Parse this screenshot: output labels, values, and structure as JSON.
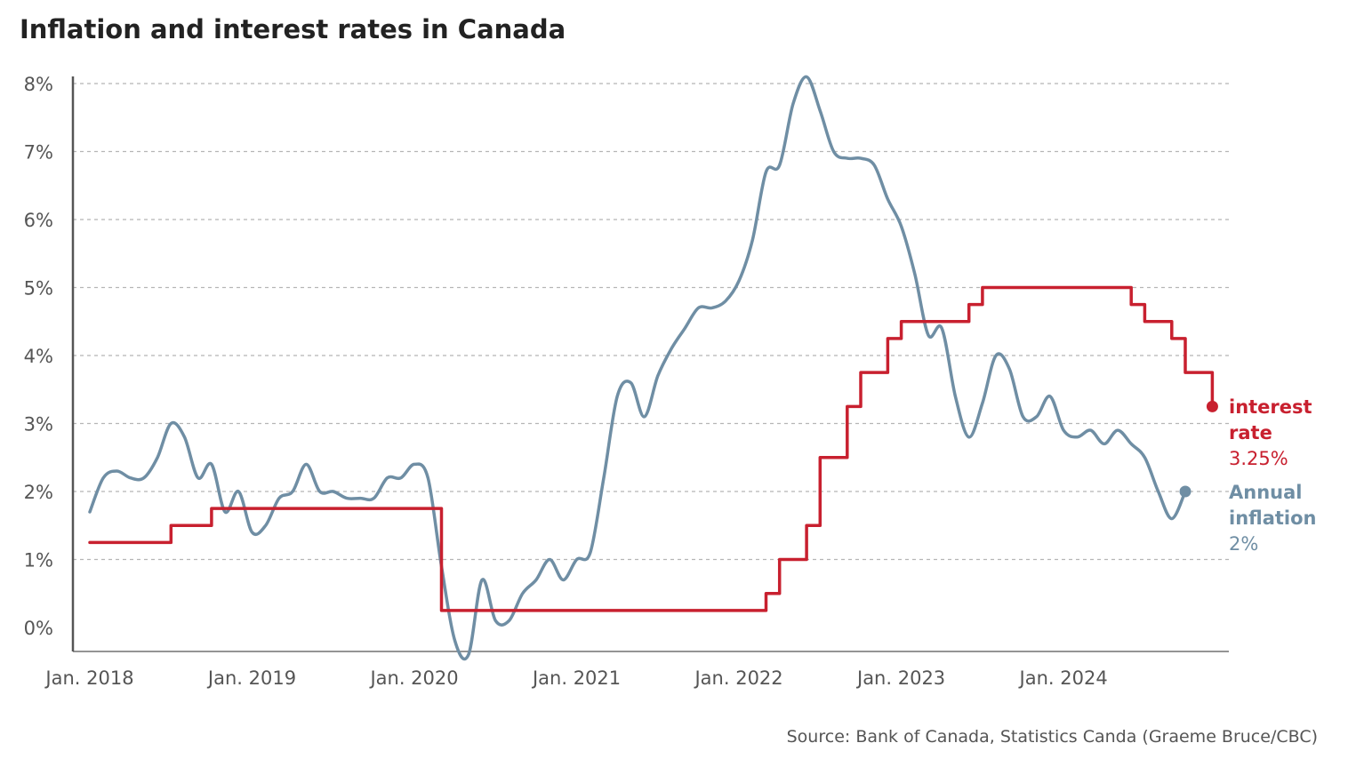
{
  "title": "Inflation and interest rates in Canada",
  "source": "Source: Bank of Canada, Statistics Canda (Graeme Bruce/CBC)",
  "colors": {
    "interest": "#c8202f",
    "inflation": "#6f8ea4",
    "grid": "#b5b5b5",
    "axis": "#555555"
  },
  "chart_data": {
    "type": "line",
    "title": "Inflation and interest rates in Canada",
    "xlabel": "",
    "ylabel": "",
    "ylim": [
      0,
      8
    ],
    "xlim": [
      "2018-01",
      "2025-01"
    ],
    "grid": "horizontal dashed",
    "legend": "direct labels at line ends (right)",
    "y_ticks": [
      "0%",
      "1%",
      "2%",
      "3%",
      "4%",
      "5%",
      "6%",
      "7%",
      "8%"
    ],
    "x_ticks": [
      {
        "date": "2018-01",
        "label": "Jan. 2018"
      },
      {
        "date": "2019-01",
        "label": "Jan. 2019"
      },
      {
        "date": "2020-01",
        "label": "Jan. 2020"
      },
      {
        "date": "2021-01",
        "label": "Jan. 2021"
      },
      {
        "date": "2022-01",
        "label": "Jan. 2022"
      },
      {
        "date": "2023-01",
        "label": "Jan. 2023"
      },
      {
        "date": "2024-01",
        "label": "Jan. 2024"
      }
    ],
    "series": [
      {
        "key": "interest",
        "label_lines": [
          "interest",
          "rate",
          "3.25%"
        ],
        "step": true,
        "points": [
          [
            "2018-01",
            1.25
          ],
          [
            "2018-07",
            1.5
          ],
          [
            "2018-10",
            1.75
          ],
          [
            "2020-03",
            0.25
          ],
          [
            "2022-03",
            0.5
          ],
          [
            "2022-04",
            1.0
          ],
          [
            "2022-06",
            1.5
          ],
          [
            "2022-07",
            2.5
          ],
          [
            "2022-09",
            3.25
          ],
          [
            "2022-10",
            3.75
          ],
          [
            "2022-12",
            4.25
          ],
          [
            "2023-01",
            4.5
          ],
          [
            "2023-06",
            4.75
          ],
          [
            "2023-07",
            5.0
          ],
          [
            "2024-06",
            4.75
          ],
          [
            "2024-07",
            4.5
          ],
          [
            "2024-09",
            4.25
          ],
          [
            "2024-10",
            3.75
          ],
          [
            "2024-12",
            3.25
          ]
        ]
      },
      {
        "key": "inflation",
        "label_lines": [
          "Annual",
          "inflation",
          "2%"
        ],
        "step": false,
        "points": [
          [
            "2018-01",
            1.7
          ],
          [
            "2018-02",
            2.2
          ],
          [
            "2018-03",
            2.3
          ],
          [
            "2018-04",
            2.2
          ],
          [
            "2018-05",
            2.2
          ],
          [
            "2018-06",
            2.5
          ],
          [
            "2018-07",
            3.0
          ],
          [
            "2018-08",
            2.8
          ],
          [
            "2018-09",
            2.2
          ],
          [
            "2018-10",
            2.4
          ],
          [
            "2018-11",
            1.7
          ],
          [
            "2018-12",
            2.0
          ],
          [
            "2019-01",
            1.4
          ],
          [
            "2019-02",
            1.5
          ],
          [
            "2019-03",
            1.9
          ],
          [
            "2019-04",
            2.0
          ],
          [
            "2019-05",
            2.4
          ],
          [
            "2019-06",
            2.0
          ],
          [
            "2019-07",
            2.0
          ],
          [
            "2019-08",
            1.9
          ],
          [
            "2019-09",
            1.9
          ],
          [
            "2019-10",
            1.9
          ],
          [
            "2019-11",
            2.2
          ],
          [
            "2019-12",
            2.2
          ],
          [
            "2020-01",
            2.4
          ],
          [
            "2020-02",
            2.2
          ],
          [
            "2020-03",
            0.9
          ],
          [
            "2020-04",
            -0.2
          ],
          [
            "2020-05",
            -0.4
          ],
          [
            "2020-06",
            0.7
          ],
          [
            "2020-07",
            0.1
          ],
          [
            "2020-08",
            0.1
          ],
          [
            "2020-09",
            0.5
          ],
          [
            "2020-10",
            0.7
          ],
          [
            "2020-11",
            1.0
          ],
          [
            "2020-12",
            0.7
          ],
          [
            "2021-01",
            1.0
          ],
          [
            "2021-02",
            1.1
          ],
          [
            "2021-03",
            2.2
          ],
          [
            "2021-04",
            3.4
          ],
          [
            "2021-05",
            3.6
          ],
          [
            "2021-06",
            3.1
          ],
          [
            "2021-07",
            3.7
          ],
          [
            "2021-08",
            4.1
          ],
          [
            "2021-09",
            4.4
          ],
          [
            "2021-10",
            4.7
          ],
          [
            "2021-11",
            4.7
          ],
          [
            "2021-12",
            4.8
          ],
          [
            "2022-01",
            5.1
          ],
          [
            "2022-02",
            5.7
          ],
          [
            "2022-03",
            6.7
          ],
          [
            "2022-04",
            6.8
          ],
          [
            "2022-05",
            7.7
          ],
          [
            "2022-06",
            8.1
          ],
          [
            "2022-07",
            7.6
          ],
          [
            "2022-08",
            7.0
          ],
          [
            "2022-09",
            6.9
          ],
          [
            "2022-10",
            6.9
          ],
          [
            "2022-11",
            6.8
          ],
          [
            "2022-12",
            6.3
          ],
          [
            "2023-01",
            5.9
          ],
          [
            "2023-02",
            5.2
          ],
          [
            "2023-03",
            4.3
          ],
          [
            "2023-04",
            4.4
          ],
          [
            "2023-05",
            3.4
          ],
          [
            "2023-06",
            2.8
          ],
          [
            "2023-07",
            3.3
          ],
          [
            "2023-08",
            4.0
          ],
          [
            "2023-09",
            3.8
          ],
          [
            "2023-10",
            3.1
          ],
          [
            "2023-11",
            3.1
          ],
          [
            "2023-12",
            3.4
          ],
          [
            "2024-01",
            2.9
          ],
          [
            "2024-02",
            2.8
          ],
          [
            "2024-03",
            2.9
          ],
          [
            "2024-04",
            2.7
          ],
          [
            "2024-05",
            2.9
          ],
          [
            "2024-06",
            2.7
          ],
          [
            "2024-07",
            2.5
          ],
          [
            "2024-08",
            2.0
          ],
          [
            "2024-09",
            1.6
          ],
          [
            "2024-10",
            2.0
          ]
        ]
      }
    ]
  }
}
